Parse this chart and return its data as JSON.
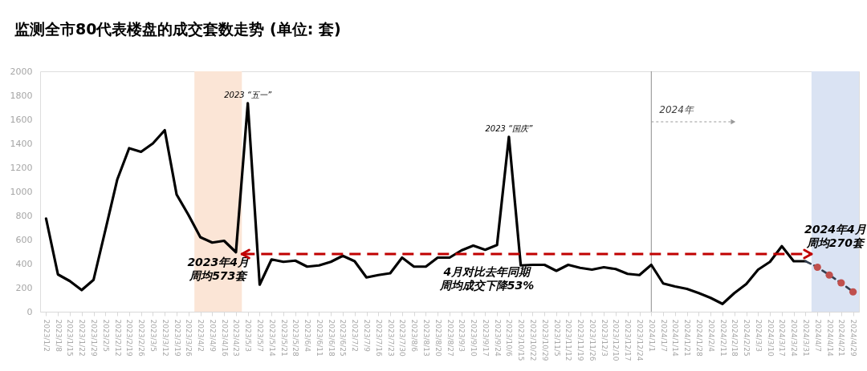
{
  "chart_data": {
    "type": "line",
    "title": "监测全市80代表楼盘的成交套数走势 (单位: 套)",
    "categories": [
      "2023/1/2",
      "2023/1/8",
      "2023/1/15",
      "2023/1/22",
      "2023/1/29",
      "2023/2/5",
      "2023/2/12",
      "2023/2/19",
      "2023/2/26",
      "2023/3/5",
      "2023/3/12",
      "2023/3/19",
      "2023/3/26",
      "2023/4/2",
      "2023/4/9",
      "2023/4/16",
      "2023/4/23",
      "2023/5/3",
      "2023/5/7",
      "2023/5/14",
      "2023/5/21",
      "2023/5/28",
      "2023/6/4",
      "2023/6/11",
      "2023/6/18",
      "2023/6/25",
      "2023/7/2",
      "2023/7/9",
      "2023/7/16",
      "2023/7/23",
      "2023/7/30",
      "2023/8/6",
      "2023/8/13",
      "2023/8/20",
      "2023/8/27",
      "2023/9/3",
      "2023/9/10",
      "2023/9/17",
      "2023/9/24",
      "2023/10/6",
      "2023/10/15",
      "2023/10/22",
      "2023/10/29",
      "2023/11/5",
      "2023/11/12",
      "2023/11/19",
      "2023/11/26",
      "2023/12/3",
      "2023/12/10",
      "2023/12/17",
      "2023/12/24",
      "2024/1/1",
      "2024/1/7",
      "2024/1/14",
      "2024/1/21",
      "2024/1/28",
      "2024/2/4",
      "2024/2/11",
      "2024/2/18",
      "2024/2/25",
      "2024/3/3",
      "2024/3/10",
      "2024/3/17",
      "2024/3/24",
      "2024/3/31",
      "2024/4/7",
      "2024/4/14",
      "2024/4/21",
      "2024/4/29"
    ],
    "series": [
      {
        "color": "#000000",
        "values": [
          775,
          310,
          255,
          180,
          265,
          680,
          1100,
          1360,
          1330,
          1400,
          1510,
          975,
          805,
          620,
          575,
          590,
          495,
          1735,
          225,
          435,
          415,
          425,
          375,
          385,
          415,
          465,
          420,
          285,
          305,
          320,
          450,
          375,
          375,
          450,
          450,
          510,
          550,
          515,
          555,
          1455,
          385,
          390,
          390,
          340,
          390,
          365,
          350,
          370,
          355,
          315,
          305,
          390,
          235,
          210,
          190,
          155,
          115,
          65,
          155,
          230,
          350,
          415,
          545,
          420,
          420,
          null,
          null,
          null,
          null
        ]
      },
      {
        "color": "#333f50",
        "line_style": "dashed",
        "values": [
          null,
          null,
          null,
          null,
          null,
          null,
          null,
          null,
          null,
          null,
          null,
          null,
          null,
          null,
          null,
          null,
          null,
          null,
          null,
          null,
          null,
          null,
          null,
          null,
          null,
          null,
          null,
          null,
          null,
          null,
          null,
          null,
          null,
          null,
          null,
          null,
          null,
          null,
          null,
          null,
          null,
          null,
          null,
          null,
          null,
          null,
          null,
          null,
          null,
          null,
          null,
          null,
          null,
          null,
          null,
          null,
          null,
          null,
          null,
          null,
          null,
          null,
          null,
          null,
          420,
          370,
          305,
          240,
          165
        ]
      },
      {
        "type": "scatter",
        "color": "#c0504d",
        "marker": "circle",
        "values": [
          null,
          null,
          null,
          null,
          null,
          null,
          null,
          null,
          null,
          null,
          null,
          null,
          null,
          null,
          null,
          null,
          null,
          null,
          null,
          null,
          null,
          null,
          null,
          null,
          null,
          null,
          null,
          null,
          null,
          null,
          null,
          null,
          null,
          null,
          null,
          null,
          null,
          null,
          null,
          null,
          null,
          null,
          null,
          null,
          null,
          null,
          null,
          null,
          null,
          null,
          null,
          null,
          null,
          null,
          null,
          null,
          null,
          null,
          null,
          null,
          null,
          null,
          null,
          null,
          null,
          370,
          305,
          240,
          165
        ]
      }
    ],
    "ylim": [
      0,
      2000
    ],
    "yticks": [
      0,
      200,
      400,
      600,
      800,
      1000,
      1200,
      1400,
      1600,
      1800,
      2000
    ],
    "grid": false,
    "bands": [
      {
        "axis": "x",
        "from": "2023/4/2",
        "to": "2023/4/23",
        "label": "2023年4月周均573套",
        "color": "#fbe5d6"
      },
      {
        "axis": "x",
        "from": "2024/4/7",
        "to": "2024/4/29",
        "label": "2024年4月周均270套",
        "color": "#dae3f3"
      }
    ],
    "ref_lines": [
      {
        "axis": "x",
        "value": "2024/1/1",
        "label": "2024年",
        "color": "#8c8c8c"
      },
      {
        "axis": "y",
        "value": 480,
        "color": "#c00000",
        "line_style": "dashed"
      }
    ],
    "annotations": [
      {
        "text": "2023 “五一”",
        "x": "2023/5/3",
        "y": 1735
      },
      {
        "text": "2023 “国庆”",
        "x": "2023/10/6",
        "y": 1455
      },
      "4月对比去年同期周均成交下降53%"
    ]
  }
}
